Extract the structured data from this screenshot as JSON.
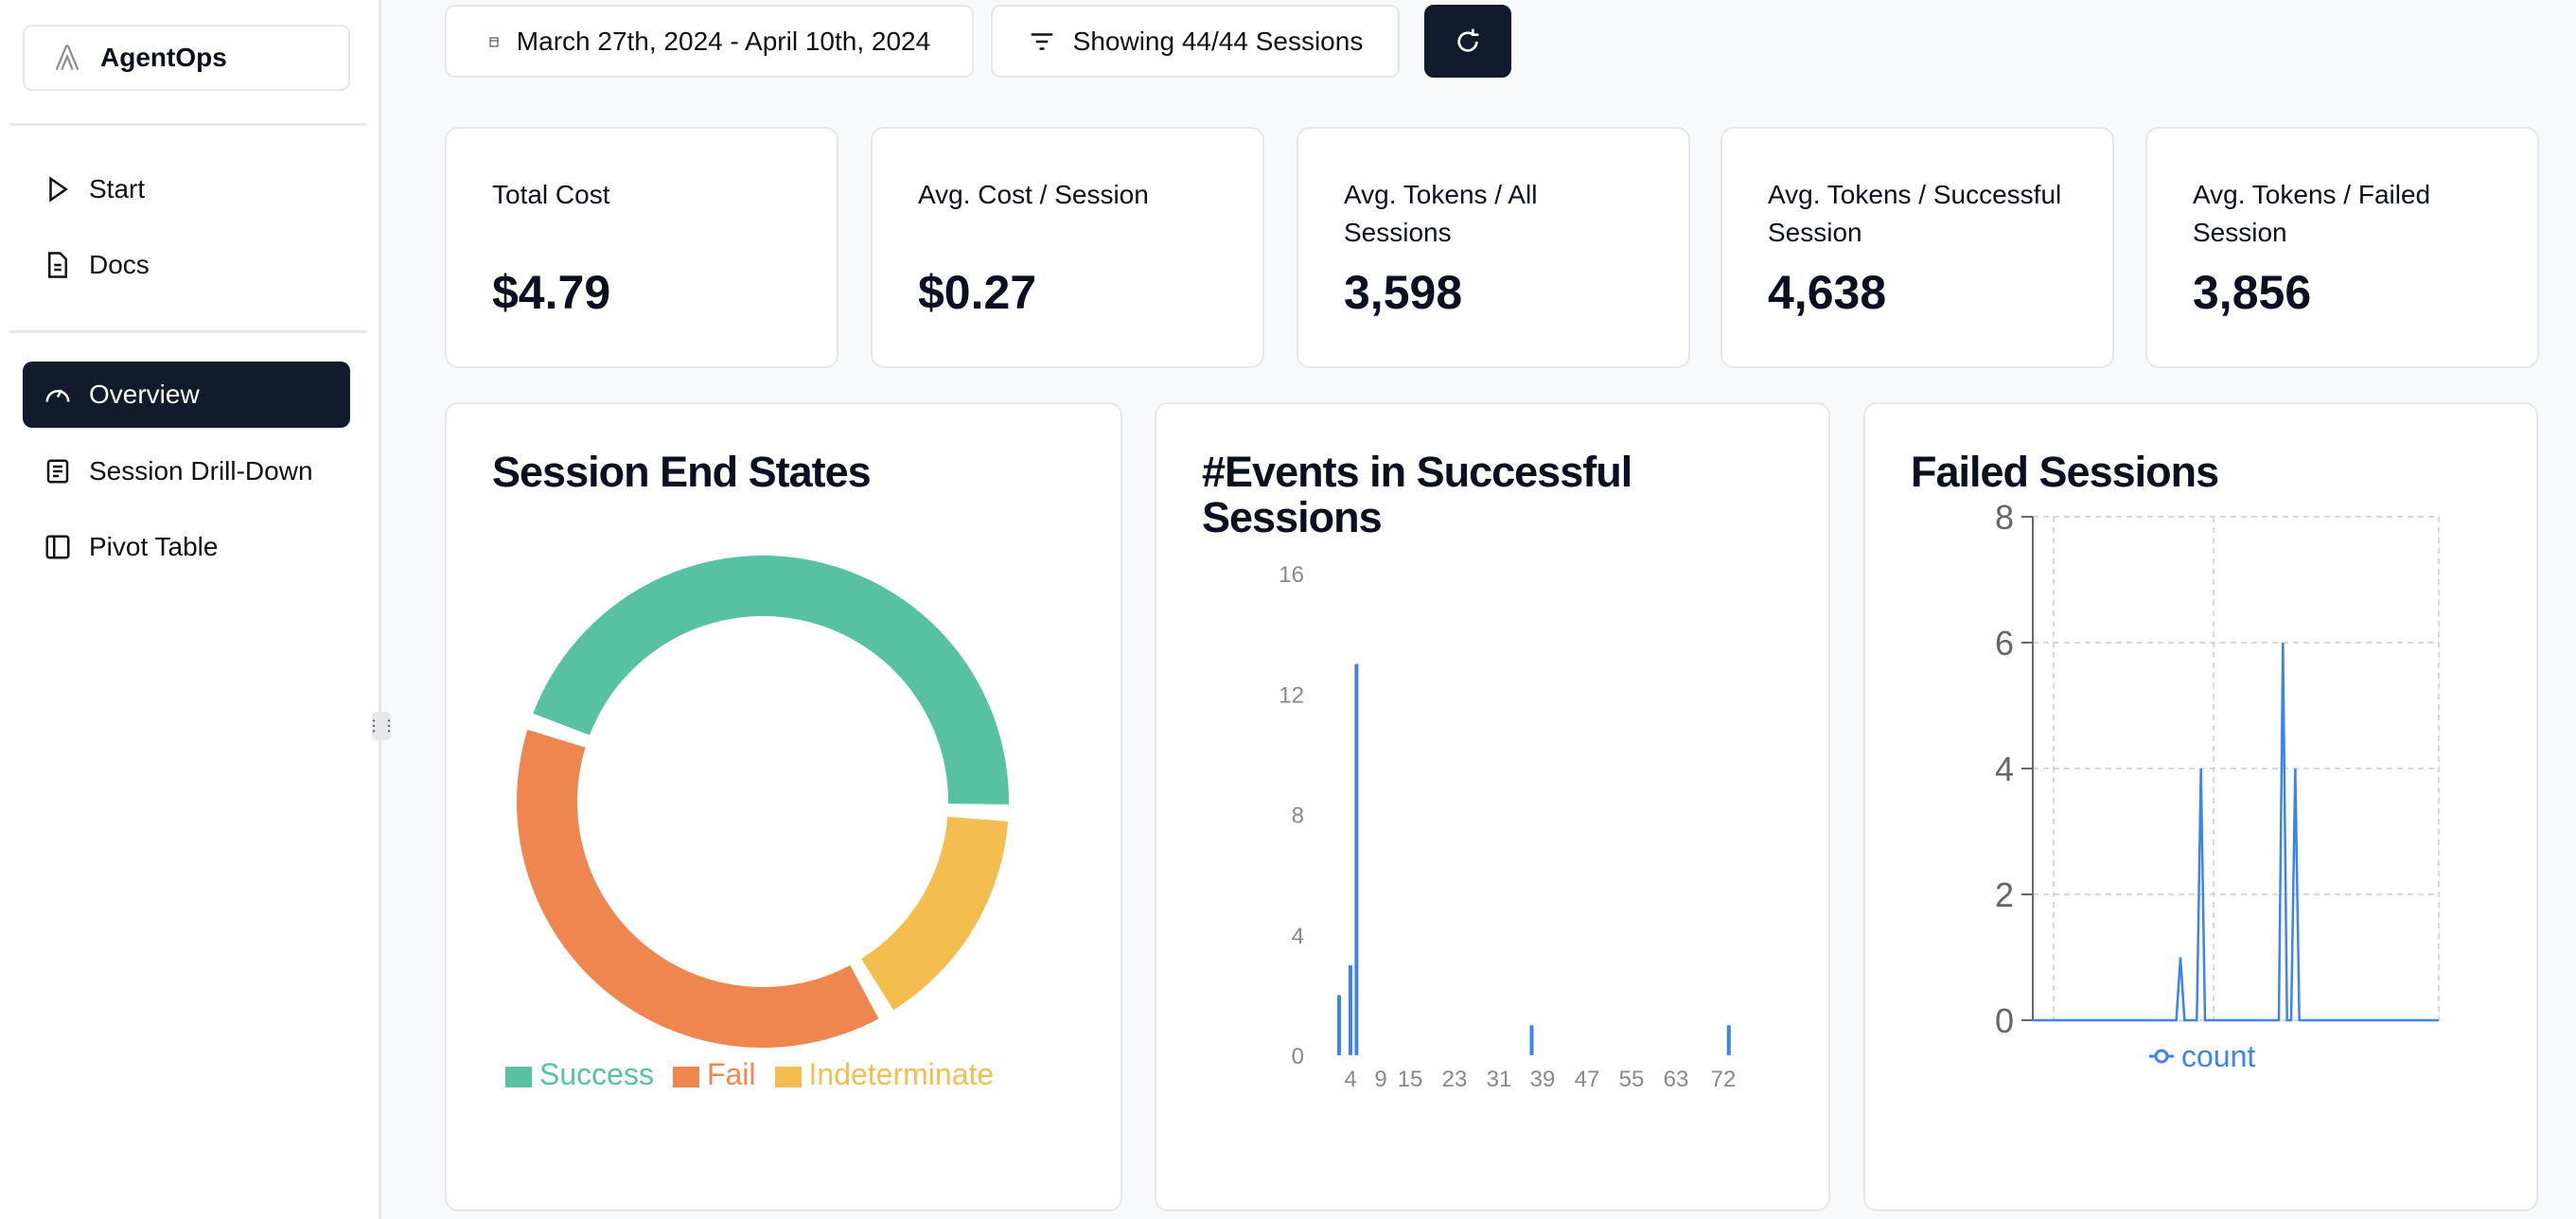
{
  "sidebar": {
    "brand": "AgentOps",
    "items": [
      {
        "label": "Start",
        "icon": "play-icon"
      },
      {
        "label": "Docs",
        "icon": "document-icon"
      },
      {
        "label": "Overview",
        "icon": "gauge-icon",
        "active": true
      },
      {
        "label": "Session Drill-Down",
        "icon": "list-icon"
      },
      {
        "label": "Pivot Table",
        "icon": "table-icon"
      }
    ]
  },
  "toolbar": {
    "date_range": "March 27th, 2024 - April 10th, 2024",
    "sessions_filter": "Showing 44/44 Sessions",
    "refresh_icon": "refresh-icon"
  },
  "stats": [
    {
      "label": "Total Cost",
      "value": "$4.79"
    },
    {
      "label": "Avg. Cost / Session",
      "value": "$0.27"
    },
    {
      "label": "Avg. Tokens / All Sessions",
      "value": "3,598"
    },
    {
      "label": "Avg. Tokens / Successful Session",
      "value": "4,638"
    },
    {
      "label": "Avg. Tokens / Failed Session",
      "value": "3,856"
    }
  ],
  "colors": {
    "success": "#57c1a1",
    "fail": "#ef8650",
    "indeterminate": "#f4bd4f",
    "bar": "#3b82f6",
    "dark": "#131a2b"
  },
  "chart_data": [
    {
      "type": "pie",
      "title": "Session End States",
      "donut": true,
      "categories": [
        "Success",
        "Fail",
        "Indeterminate"
      ],
      "values": [
        20,
        17,
        7
      ],
      "legend": "bottom"
    },
    {
      "type": "bar",
      "title": "#Events in Successful Sessions",
      "x_tick_labels": [
        "4",
        "9",
        "15",
        "23",
        "31",
        "39",
        "47",
        "55",
        "63",
        "72"
      ],
      "points": [
        {
          "x": 2,
          "y": 2
        },
        {
          "x": 4,
          "y": 3
        },
        {
          "x": 5,
          "y": 13
        },
        {
          "x": 37,
          "y": 1
        },
        {
          "x": 73,
          "y": 1
        }
      ],
      "ylim": [
        0,
        16
      ],
      "y_ticks": [
        "0",
        "4",
        "8",
        "12",
        "16"
      ],
      "grid": false
    },
    {
      "type": "line",
      "title": "Failed Sessions",
      "series": [
        {
          "name": "count",
          "values": [
            0,
            0,
            0,
            0,
            0,
            0,
            0,
            0,
            0,
            0,
            0,
            0,
            0,
            0,
            0,
            0,
            0,
            0,
            0,
            0,
            0,
            0,
            0,
            0,
            0,
            0,
            0,
            0,
            0,
            0,
            0,
            0,
            0,
            0,
            0,
            0,
            1,
            0,
            0,
            0,
            0,
            4,
            0,
            0,
            0,
            0,
            0,
            0,
            0,
            0,
            0,
            0,
            0,
            0,
            0,
            0,
            0,
            0,
            0,
            0,
            0,
            6,
            0,
            0,
            4,
            0,
            0,
            0,
            0,
            0,
            0,
            0,
            0,
            0,
            0,
            0,
            0,
            0,
            0,
            0,
            0,
            0,
            0,
            0,
            0,
            0,
            0,
            0,
            0,
            0,
            0,
            0,
            0,
            0,
            0,
            0,
            0,
            0,
            0,
            0
          ]
        }
      ],
      "ylim": [
        0,
        8
      ],
      "y_ticks": [
        "0",
        "2",
        "4",
        "6",
        "8"
      ],
      "grid": true,
      "legend": "bottom"
    }
  ]
}
